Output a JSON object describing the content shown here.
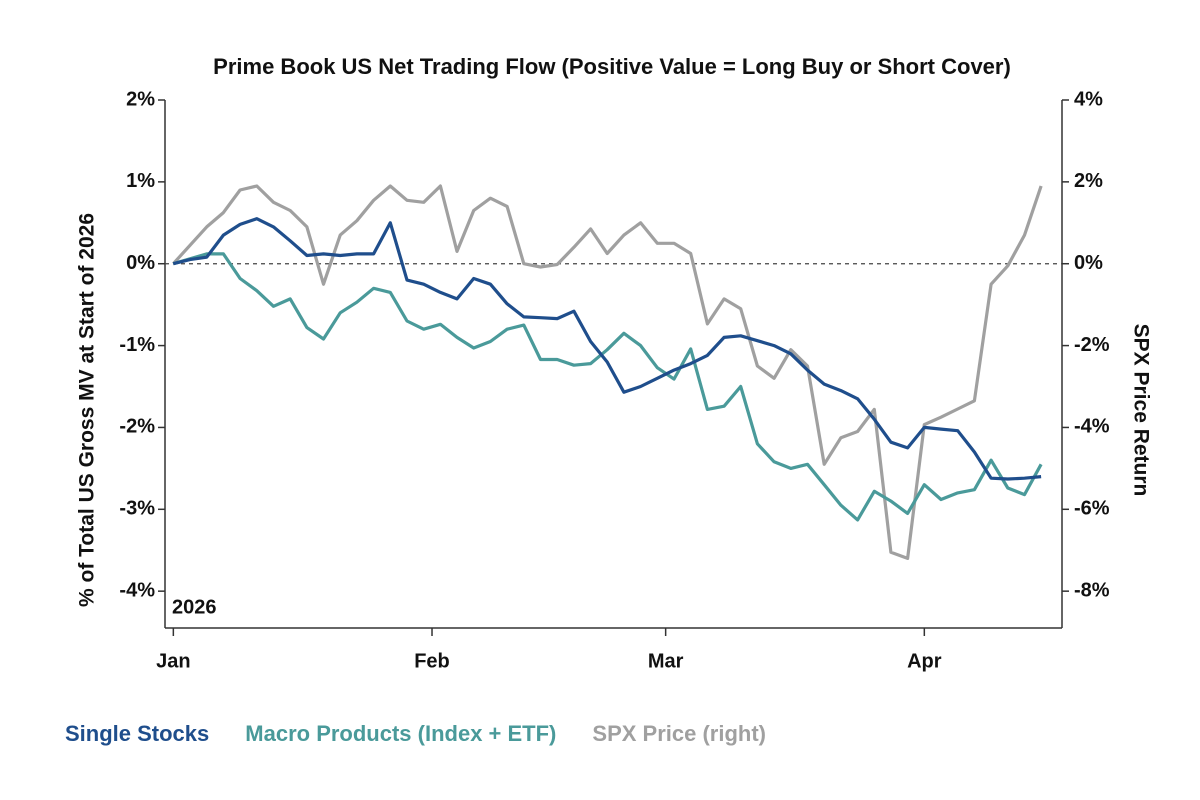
{
  "chart_data": {
    "type": "line",
    "title": "Prime Book US Net Trading Flow (Positive Value = Long Buy or Short Cover)",
    "y_label": "% of Total US Gross MV at Start of 2026",
    "y2_label": "SPX Price Return",
    "annotation": "2026",
    "x": [
      0,
      2,
      4,
      6,
      8,
      10,
      12,
      14,
      16,
      18,
      20,
      22,
      24,
      26,
      28,
      30,
      32,
      34,
      36,
      38,
      40,
      42,
      44,
      46,
      48,
      50,
      52,
      54,
      56,
      58,
      60,
      62,
      64,
      66,
      68,
      70,
      72,
      74,
      76,
      78,
      80,
      82,
      84,
      86,
      88,
      90,
      92,
      94,
      96,
      98,
      100,
      102,
      104
    ],
    "xlim": [
      -1,
      106.5
    ],
    "xticks": [
      {
        "value": 0,
        "label": "Jan"
      },
      {
        "value": 31,
        "label": "Feb"
      },
      {
        "value": 59,
        "label": "Mar"
      },
      {
        "value": 90,
        "label": "Apr"
      }
    ],
    "ylim": [
      -4.45,
      2
    ],
    "yticks": [
      {
        "value": 2,
        "label": "2%"
      },
      {
        "value": 1,
        "label": "1%"
      },
      {
        "value": 0,
        "label": "0%"
      },
      {
        "value": -1,
        "label": "-1%"
      },
      {
        "value": -2,
        "label": "-2%"
      },
      {
        "value": -3,
        "label": "-3%"
      },
      {
        "value": -4,
        "label": "-4%"
      }
    ],
    "y2lim": [
      -8.9,
      4
    ],
    "y2ticks": [
      {
        "value": 4,
        "label": "4%"
      },
      {
        "value": 2,
        "label": "2%"
      },
      {
        "value": 0,
        "label": "0%"
      },
      {
        "value": -2,
        "label": "-2%"
      },
      {
        "value": -4,
        "label": "-4%"
      },
      {
        "value": -6,
        "label": "-6%"
      },
      {
        "value": -8,
        "label": "-8%"
      }
    ],
    "zero_line": true,
    "series": [
      {
        "name": "Single Stocks",
        "color": "#1f4e8c",
        "axis": "y",
        "values": [
          0,
          0.05,
          0.08,
          0.35,
          0.48,
          0.55,
          0.45,
          0.28,
          0.1,
          0.12,
          0.1,
          0.12,
          0.12,
          0.5,
          -0.2,
          -0.25,
          -0.35,
          -0.43,
          -0.18,
          -0.25,
          -0.49,
          -0.65,
          -0.66,
          -0.67,
          -0.58,
          -0.95,
          -1.2,
          -1.57,
          -1.5,
          -1.4,
          -1.3,
          -1.22,
          -1.12,
          -0.9,
          -0.88,
          -0.94,
          -1.0,
          -1.1,
          -1.3,
          -1.47,
          -1.55,
          -1.65,
          -1.9,
          -2.18,
          -2.25,
          -2.0,
          -2.02,
          -2.04,
          -2.3,
          -2.62,
          -2.63,
          -2.62,
          -2.6
        ]
      },
      {
        "name": "Macro Products (Index + ETF)",
        "color": "#4a9a9a",
        "axis": "y",
        "values": [
          0,
          0.06,
          0.12,
          0.12,
          -0.18,
          -0.33,
          -0.52,
          -0.43,
          -0.78,
          -0.92,
          -0.6,
          -0.47,
          -0.3,
          -0.35,
          -0.7,
          -0.8,
          -0.74,
          -0.9,
          -1.03,
          -0.95,
          -0.8,
          -0.75,
          -1.17,
          -1.17,
          -1.24,
          -1.22,
          -1.05,
          -0.85,
          -1.0,
          -1.27,
          -1.41,
          -1.04,
          -1.78,
          -1.74,
          -1.5,
          -2.2,
          -2.42,
          -2.5,
          -2.45,
          -2.7,
          -2.95,
          -3.13,
          -2.78,
          -2.9,
          -3.05,
          -2.7,
          -2.88,
          -2.8,
          -2.76,
          -2.4,
          -2.74,
          -2.82,
          -2.45
        ]
      },
      {
        "name": "SPX Price (right)",
        "color": "#a0a0a0",
        "axis": "y2",
        "values": [
          0,
          0.45,
          0.9,
          1.25,
          1.8,
          1.9,
          1.5,
          1.3,
          0.9,
          -0.5,
          0.7,
          1.05,
          1.55,
          1.9,
          1.55,
          1.5,
          1.9,
          0.3,
          1.3,
          1.6,
          1.4,
          0.0,
          -0.08,
          -0.02,
          0.4,
          0.85,
          0.25,
          0.7,
          1.0,
          0.5,
          0.5,
          0.25,
          -1.47,
          -0.86,
          -1.1,
          -2.5,
          -2.8,
          -2.1,
          -2.5,
          -4.9,
          -4.25,
          -4.1,
          -3.56,
          -7.05,
          -7.2,
          -3.93,
          -3.75,
          -3.55,
          -3.35,
          -0.5,
          -0.05,
          0.7,
          1.9
        ]
      }
    ]
  }
}
